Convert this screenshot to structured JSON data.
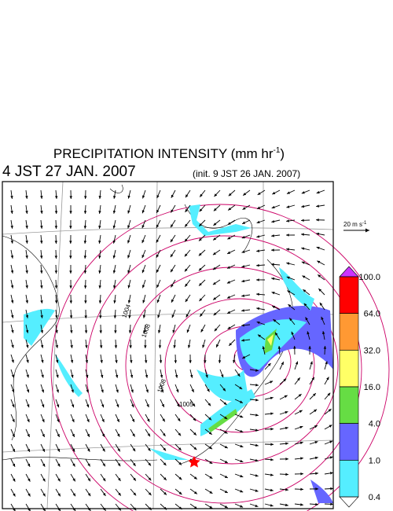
{
  "header": {
    "title": "PRECIPITATION INTENSITY (mm hr",
    "title_exponent": "-1",
    "title_end": ")",
    "valid_time": "4 JST 27 JAN. 2007",
    "init_time": "(init. 9 JST 26 JAN. 2007)"
  },
  "wind_scale": {
    "label": "20 m s",
    "exponent": "-1"
  },
  "colorbar": {
    "ticks": [
      {
        "value": 100,
        "label": "100.0"
      },
      {
        "value": 64,
        "label": "64.0"
      },
      {
        "value": 32,
        "label": "32.0"
      },
      {
        "value": 16,
        "label": "16.0"
      },
      {
        "value": 4,
        "label": "4.0"
      },
      {
        "value": 1,
        "label": "1.0"
      },
      {
        "value": 0.4,
        "label": "0.4"
      }
    ],
    "colors": [
      "#ff0000",
      "#ff9933",
      "#ffff66",
      "#66dd44",
      "#6666ff",
      "#55eeff"
    ],
    "over_color": "#cc33ff",
    "under_color": "#ffffff"
  },
  "isobar_labels": [
    "1004",
    "1008",
    "1008",
    "1005"
  ]
}
